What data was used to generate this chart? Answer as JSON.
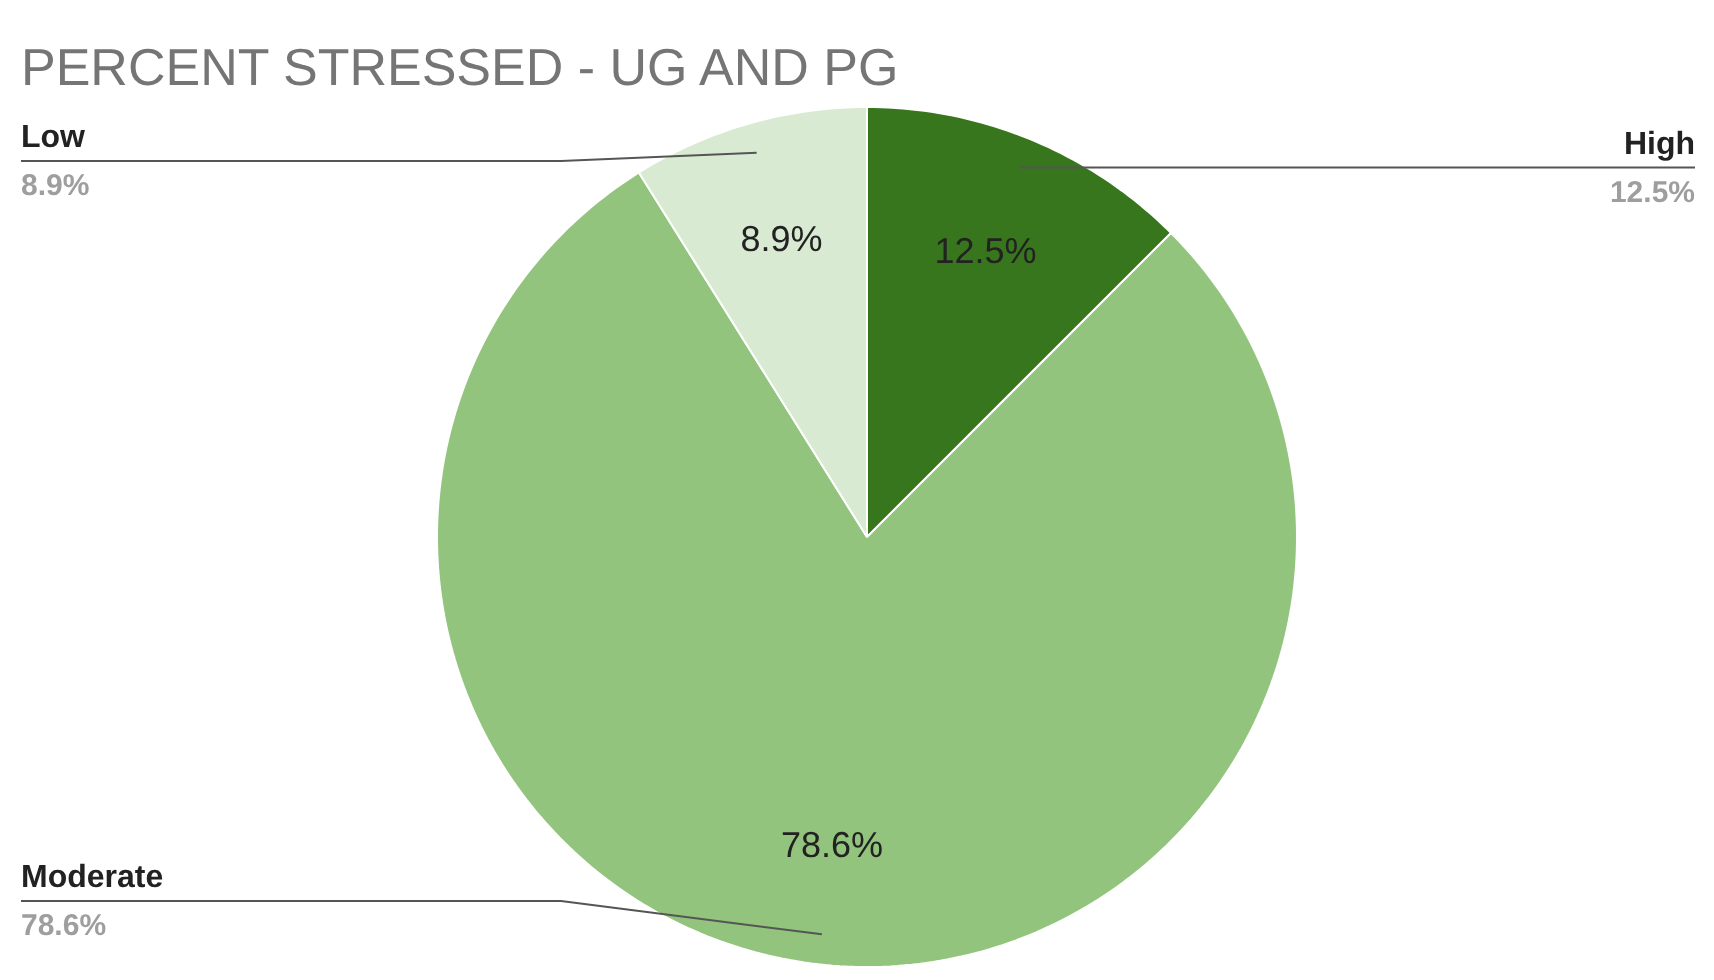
{
  "chart_data": {
    "type": "pie",
    "title": "PERCENT STRESSED - UG AND PG",
    "categories": [
      "High",
      "Moderate",
      "Low"
    ],
    "values": [
      12.5,
      78.6,
      8.9
    ],
    "colors": [
      "#38761d",
      "#93c47d",
      "#d9ead3"
    ],
    "value_labels": [
      "12.5%",
      "78.6%",
      "8.9%"
    ]
  }
}
